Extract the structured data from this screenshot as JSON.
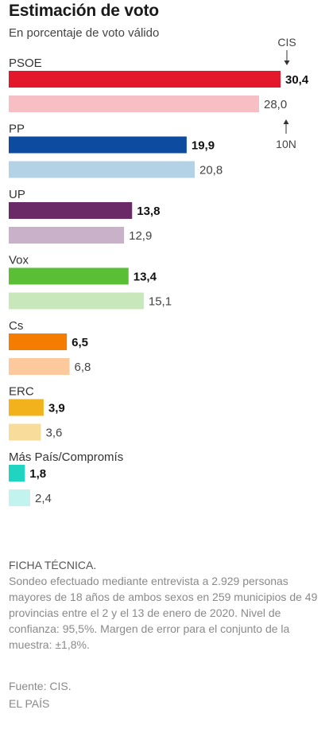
{
  "chart_data": {
    "type": "bar",
    "orientation": "horizontal",
    "title": "Estimación de voto",
    "subtitle": "En porcentaje de voto válido",
    "series_labels": {
      "current": "CIS",
      "previous": "10N"
    },
    "categories": [
      {
        "label": "PSOE",
        "current": 30.4,
        "previous": 28.0,
        "current_label": "30,4",
        "previous_label": "28,0",
        "current_color": "#e3182d",
        "previous_color": "#f7bfc4"
      },
      {
        "label": "PP",
        "current": 19.9,
        "previous": 20.8,
        "current_label": "19,9",
        "previous_label": "20,8",
        "current_color": "#0d4ba0",
        "previous_color": "#b4d2e6"
      },
      {
        "label": "UP",
        "current": 13.8,
        "previous": 12.9,
        "current_label": "13,8",
        "previous_label": "12,9",
        "current_color": "#6a2a68",
        "previous_color": "#c9b1c9"
      },
      {
        "label": "Vox",
        "current": 13.4,
        "previous": 15.1,
        "current_label": "13,4",
        "previous_label": "15,1",
        "current_color": "#5abf34",
        "previous_color": "#c8e8bb"
      },
      {
        "label": "Cs",
        "current": 6.5,
        "previous": 6.8,
        "current_label": "6,5",
        "previous_label": "6,8",
        "current_color": "#f47d00",
        "previous_color": "#fbc99c"
      },
      {
        "label": "ERC",
        "current": 3.9,
        "previous": 3.6,
        "current_label": "3,9",
        "previous_label": "3,6",
        "current_color": "#f1b21b",
        "previous_color": "#f8dc99"
      },
      {
        "label": "Más País/Compromís",
        "current": 1.8,
        "previous": 2.4,
        "current_label": "1,8",
        "previous_label": "2,4",
        "current_color": "#1fd5c1",
        "previous_color": "#c3f3ee"
      }
    ],
    "xlim": [
      0,
      30.4
    ],
    "grid": false
  },
  "ficha": {
    "title": "FICHA TÉCNICA.",
    "body": "Sondeo efectuado mediante entrevista a 2.929 personas mayores de 18 años de ambos sexos en 259 municipios de 49 provincias entre el 2 y el 13 de enero de 2020. Nivel de confianza: 95,5%. Margen de error para el conjunto de la muestra: ±1,8%."
  },
  "source": "Fuente: CIS.",
  "credit": "EL PAÍS"
}
